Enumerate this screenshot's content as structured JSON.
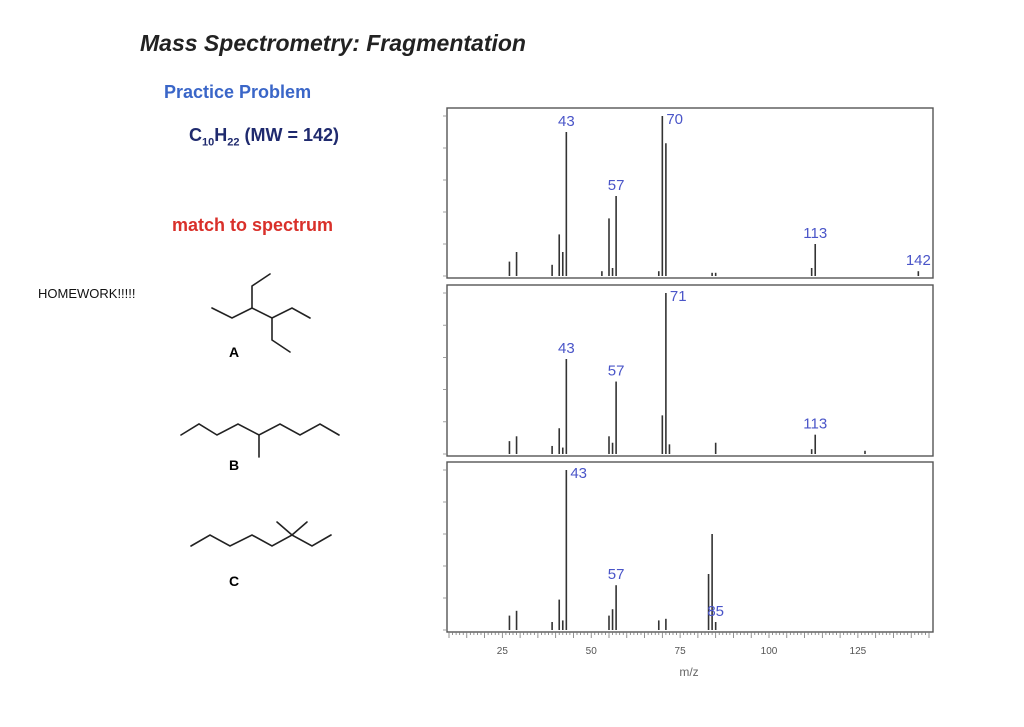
{
  "title": "Mass Spectrometry: Fragmentation",
  "practice_heading": "Practice Problem",
  "formula": {
    "c": "C",
    "c_sub": "10",
    "h": "H",
    "h_sub": "22",
    "mw": " (MW = 142)"
  },
  "instruction": "match to spectrum",
  "note": "HOMEWORK!!!!!",
  "structures": [
    {
      "label": "A"
    },
    {
      "label": "B"
    },
    {
      "label": "C"
    }
  ],
  "chart_data": [
    {
      "type": "bar",
      "xlabel": "",
      "xlim": [
        10,
        145
      ],
      "ylim": [
        0,
        100
      ],
      "x": [
        27,
        29,
        39,
        41,
        42,
        43,
        53,
        55,
        56,
        57,
        69,
        70,
        71,
        84,
        85,
        112,
        113,
        142
      ],
      "values": [
        9,
        15,
        7,
        26,
        15,
        90,
        3,
        36,
        5,
        50,
        3,
        100,
        83,
        2,
        2,
        5,
        20,
        3
      ],
      "peak_labels": [
        {
          "x": 43,
          "text": "43"
        },
        {
          "x": 57,
          "text": "57"
        },
        {
          "x": 70,
          "text": "70"
        },
        {
          "x": 113,
          "text": "113"
        },
        {
          "x": 142,
          "text": "142"
        }
      ]
    },
    {
      "type": "bar",
      "xlabel": "",
      "xlim": [
        10,
        145
      ],
      "ylim": [
        0,
        100
      ],
      "x": [
        27,
        29,
        39,
        41,
        42,
        43,
        55,
        56,
        57,
        70,
        71,
        72,
        85,
        112,
        113,
        127
      ],
      "values": [
        8,
        11,
        5,
        16,
        4,
        59,
        11,
        7,
        45,
        24,
        100,
        6,
        7,
        3,
        12,
        2
      ],
      "peak_labels": [
        {
          "x": 43,
          "text": "43"
        },
        {
          "x": 57,
          "text": "57"
        },
        {
          "x": 71,
          "text": "71"
        },
        {
          "x": 113,
          "text": "113"
        }
      ]
    },
    {
      "type": "bar",
      "xlabel": "m/z",
      "xlim": [
        10,
        145
      ],
      "ylim": [
        0,
        100
      ],
      "x_ticks": [
        25,
        50,
        75,
        100,
        125
      ],
      "x": [
        27,
        29,
        39,
        41,
        42,
        43,
        55,
        56,
        57,
        69,
        71,
        83,
        84,
        85
      ],
      "values": [
        9,
        12,
        5,
        19,
        6,
        100,
        9,
        13,
        28,
        6,
        7,
        35,
        60,
        5
      ],
      "peak_labels": [
        {
          "x": 43,
          "text": "43"
        },
        {
          "x": 57,
          "text": "57"
        },
        {
          "x": 85,
          "text": "85"
        }
      ]
    }
  ]
}
